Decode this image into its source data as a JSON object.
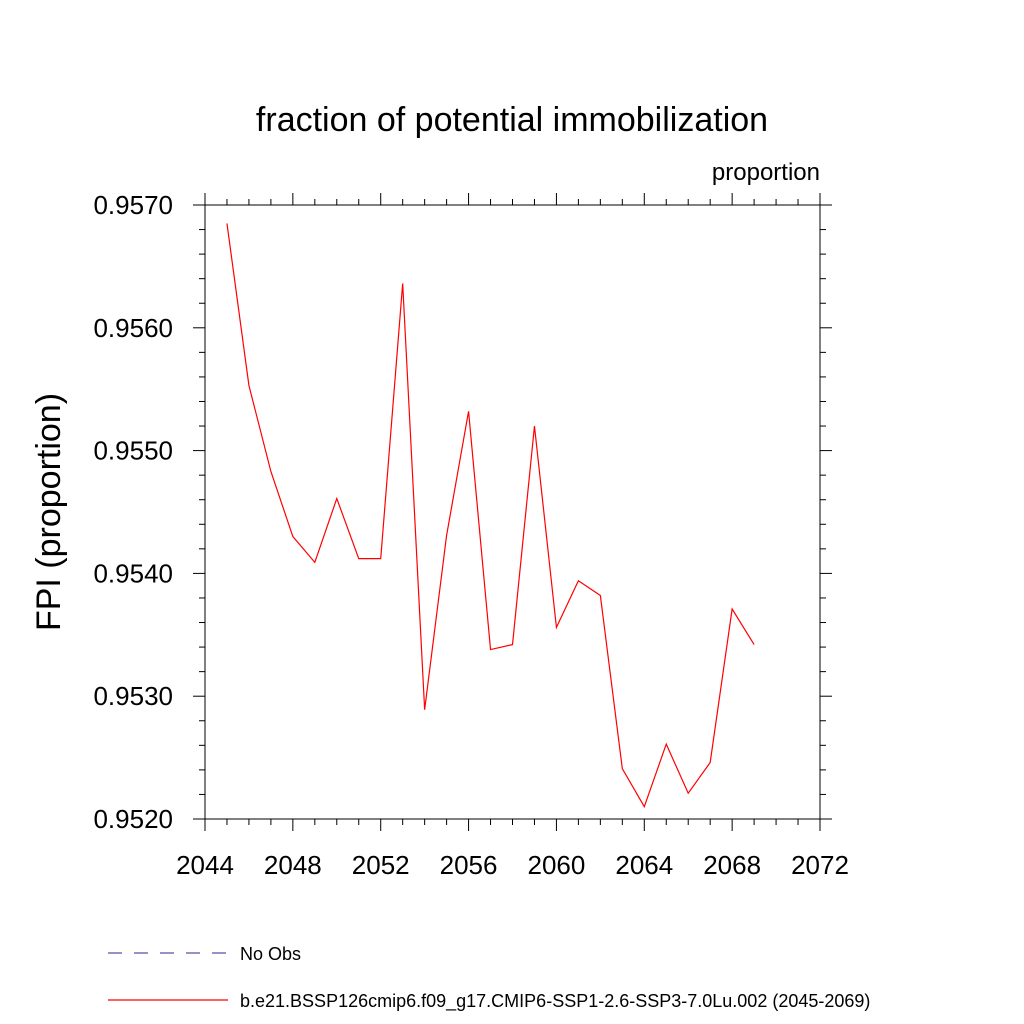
{
  "chart_data": {
    "type": "line",
    "title": "fraction of potential immobilization",
    "units_label": "proportion",
    "ylabel": "FPI  (proportion)",
    "xlabel": "",
    "xlim": [
      2044,
      2072
    ],
    "ylim": [
      0.952,
      0.957
    ],
    "x_ticks": [
      "2044",
      "2048",
      "2052",
      "2056",
      "2060",
      "2064",
      "2068",
      "2072"
    ],
    "y_ticks": [
      "0.9520",
      "0.9530",
      "0.9540",
      "0.9550",
      "0.9560",
      "0.9570"
    ],
    "grid": false,
    "legend_position": "bottom",
    "series": [
      {
        "name": "b.e21.BSSP126cmip6.f09_g17.CMIP6-SSP1-2.6-SSP3-7.0Lu.002 (2045-2069)",
        "color": "#ff0000",
        "style": "solid",
        "x": [
          2045,
          2046,
          2047,
          2048,
          2049,
          2050,
          2051,
          2052,
          2053,
          2054,
          2055,
          2056,
          2057,
          2058,
          2059,
          2060,
          2061,
          2062,
          2063,
          2064,
          2065,
          2066,
          2067,
          2068,
          2069
        ],
        "values": [
          0.95685,
          0.95553,
          0.95483,
          0.9543,
          0.95409,
          0.95461,
          0.95412,
          0.95412,
          0.95636,
          0.95289,
          0.95431,
          0.95532,
          0.95338,
          0.95342,
          0.9552,
          0.95356,
          0.95394,
          0.95382,
          0.95241,
          0.9521,
          0.95261,
          0.95221,
          0.95246,
          0.95371,
          0.95342
        ]
      },
      {
        "name": "No Obs",
        "color": "#5b4fa8",
        "style": "dashed",
        "x": [],
        "values": []
      }
    ]
  }
}
